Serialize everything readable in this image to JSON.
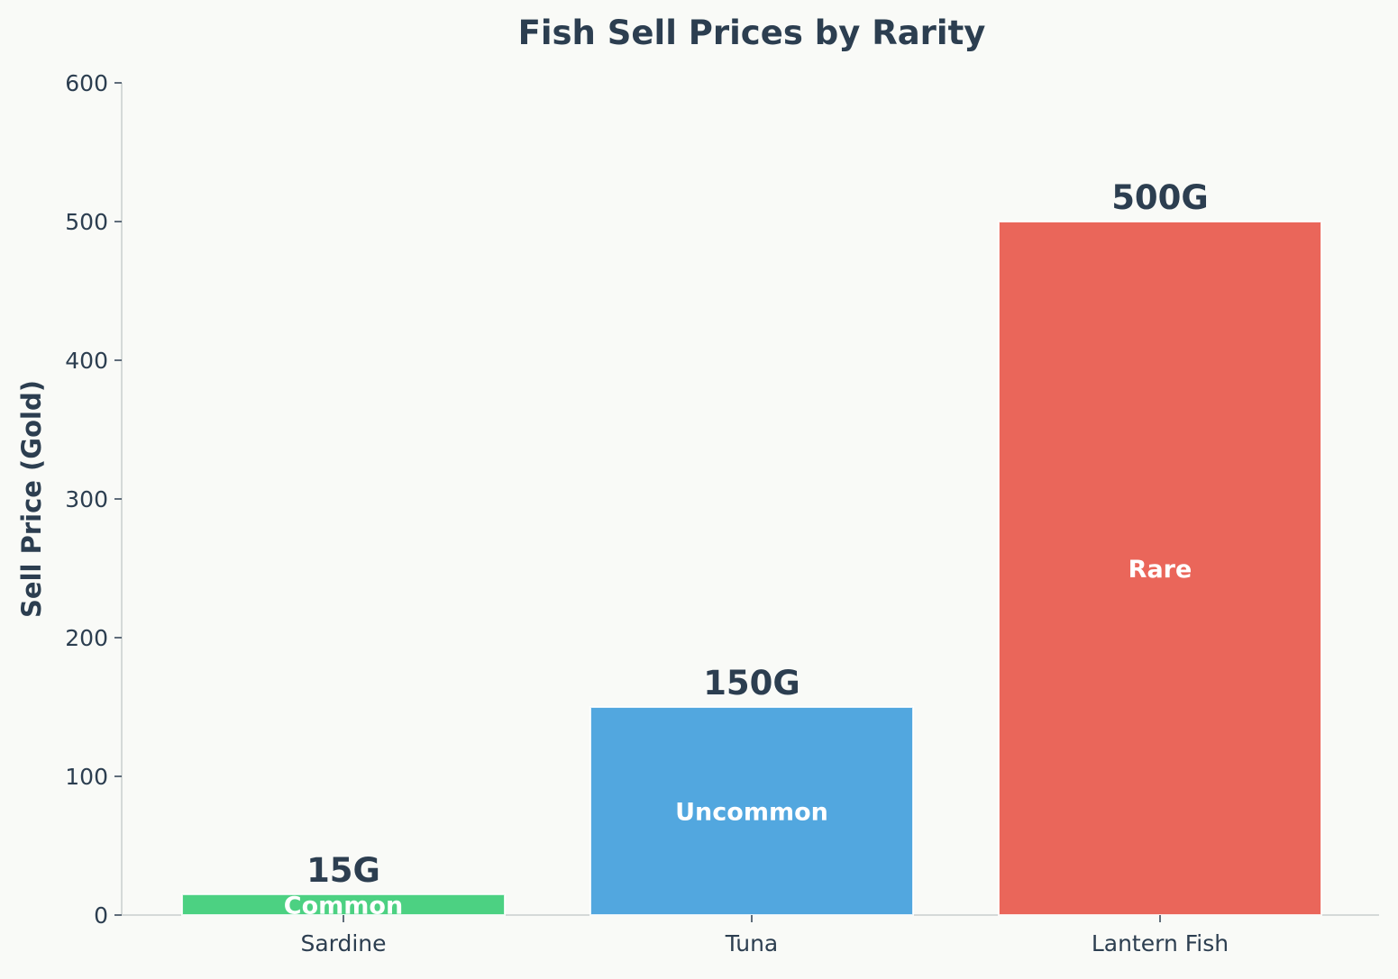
{
  "chart_data": {
    "type": "bar",
    "title": "Fish Sell Prices by Rarity",
    "xlabel": "",
    "ylabel": "Sell Price (Gold)",
    "ylim": [
      0,
      600
    ],
    "yticks": [
      0,
      100,
      200,
      300,
      400,
      500,
      600
    ],
    "categories": [
      "Sardine",
      "Tuna",
      "Lantern Fish"
    ],
    "values": [
      15,
      150,
      500
    ],
    "value_labels": [
      "15G",
      "150G",
      "500G"
    ],
    "rarity_labels": [
      "Common",
      "Uncommon",
      "Rare"
    ],
    "bar_colors": [
      "#4cd182",
      "#52a7df",
      "#ea665a"
    ],
    "grid": false,
    "legend": "none"
  },
  "colors": {
    "background": "#f9faf7",
    "text": "#2c3e50",
    "axis": "#d5d9d8",
    "bar_edge": "#ffffff"
  }
}
